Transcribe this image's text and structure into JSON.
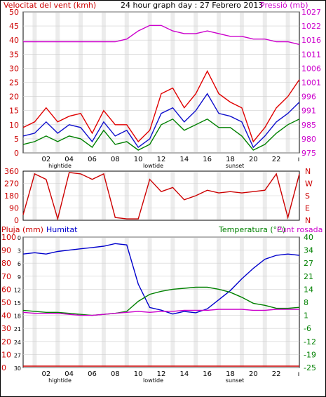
{
  "header": {
    "wind_label": "Velocitat del vent (kmh)",
    "title": "24 hour graph day : 27 Febrero 2013",
    "pressure_label": "Pressió (mb)"
  },
  "bottom_header": {
    "rain_label": "Pluja (mm)",
    "humidity_label": "Humitat",
    "temp_label": "Temperatura (°C)",
    "dew_label": "Punt rosada"
  },
  "hour_labels": [
    "02",
    "04",
    "06",
    "08",
    "10",
    "12",
    "14",
    "16",
    "18",
    "20",
    "22"
  ],
  "event_labels": {
    "hightide": "hightide",
    "lowtide": "lowtide",
    "sunset": "sunset"
  },
  "colors": {
    "wind_speed": "#1010cc",
    "wind_gust": "#e00000",
    "wind_avg": "#008000",
    "pressure": "#cc00cc",
    "direction": "#cc0000",
    "humidity": "#0000cc",
    "temperature": "#008000",
    "dew_point": "#cc00cc",
    "rain": "#cc0000",
    "left_axis": "#cc0000",
    "frame": "#000000",
    "grid": "#d0d0d0",
    "hour_band": "#ececec"
  },
  "chart_data": [
    {
      "type": "line",
      "title": "24 hour graph day : 27 Febrero 2013",
      "ylabel": "Velocitat del vent (kmh)",
      "y2label": "Pressió (mb)",
      "ylim": [
        0,
        50
      ],
      "y2lim": [
        975,
        1027
      ],
      "yticks": [
        0,
        5,
        10,
        15,
        20,
        25,
        30,
        35,
        40,
        45,
        50
      ],
      "y2ticks": [
        975,
        980,
        985,
        991,
        996,
        1001,
        1006,
        1011,
        1016,
        1022,
        1027
      ],
      "x_hours": [
        0,
        1,
        2,
        3,
        4,
        5,
        6,
        7,
        8,
        9,
        10,
        11,
        12,
        13,
        14,
        15,
        16,
        17,
        18,
        19,
        20,
        21,
        22,
        23,
        24
      ],
      "series": [
        {
          "name": "wind_speed",
          "values": [
            6,
            7,
            11,
            7,
            10,
            9,
            4,
            11,
            6,
            8,
            2,
            5,
            14,
            16,
            11,
            15,
            21,
            14,
            13,
            11,
            2,
            6,
            11,
            14,
            18
          ]
        },
        {
          "name": "wind_gust",
          "values": [
            9,
            11,
            16,
            11,
            13,
            14,
            7,
            15,
            10,
            10,
            4,
            8,
            21,
            23,
            16,
            21,
            29,
            21,
            18,
            16,
            4,
            9,
            16,
            20,
            26
          ]
        },
        {
          "name": "wind_avg",
          "values": [
            3,
            4,
            6,
            4,
            6,
            5,
            2,
            8,
            3,
            4,
            1,
            3,
            10,
            12,
            8,
            10,
            12,
            9,
            9,
            6,
            1,
            3,
            7,
            10,
            12
          ]
        },
        {
          "name": "pressure",
          "values": [
            1016,
            1016,
            1016,
            1016,
            1016,
            1016,
            1016,
            1016,
            1016,
            1017,
            1020,
            1022,
            1022,
            1020,
            1019,
            1019,
            1020,
            1019,
            1018,
            1018,
            1017,
            1017,
            1016,
            1016,
            1015
          ]
        }
      ]
    },
    {
      "type": "line",
      "ylabel_ticks": [
        "360",
        "270",
        "180",
        "90",
        "0"
      ],
      "y2label_ticks": [
        "N",
        "W",
        "S",
        "E",
        "N"
      ],
      "ylim": [
        0,
        360
      ],
      "x_hours": [
        0,
        1,
        2,
        3,
        4,
        5,
        6,
        7,
        8,
        9,
        10,
        11,
        12,
        13,
        14,
        15,
        16,
        17,
        18,
        19,
        20,
        21,
        22,
        23,
        24
      ],
      "series": [
        {
          "name": "direction",
          "values": [
            40,
            340,
            300,
            10,
            350,
            340,
            300,
            340,
            20,
            10,
            10,
            300,
            210,
            240,
            150,
            180,
            220,
            200,
            210,
            200,
            210,
            220,
            340,
            20,
            340
          ]
        }
      ]
    },
    {
      "type": "line",
      "ylim": [
        0,
        100
      ],
      "y2lim": [
        -25,
        40
      ],
      "yticks": [
        0,
        10,
        20,
        30,
        40,
        50,
        60,
        70,
        80,
        90,
        100
      ],
      "y2ticks": [
        40,
        34,
        27,
        21,
        14,
        8,
        1,
        -6,
        -12,
        -19,
        -25
      ],
      "rain_ticks": [
        0,
        3,
        6,
        9,
        12,
        15,
        18,
        21,
        24,
        27,
        30
      ],
      "x_hours": [
        0,
        1,
        2,
        3,
        4,
        5,
        6,
        7,
        8,
        9,
        10,
        11,
        12,
        13,
        14,
        15,
        16,
        17,
        18,
        19,
        20,
        21,
        22,
        23,
        24
      ],
      "series": [
        {
          "name": "humidity",
          "values": [
            87,
            88,
            87,
            89,
            90,
            91,
            92,
            93,
            95,
            94,
            64,
            46,
            44,
            41,
            43,
            42,
            45,
            52,
            59,
            68,
            76,
            83,
            86,
            87,
            86
          ]
        },
        {
          "name": "temperature",
          "values": [
            3.5,
            3,
            2.5,
            2.5,
            2,
            1.5,
            1,
            1.5,
            2,
            3,
            8,
            11.5,
            13,
            14,
            14.5,
            15,
            15,
            14,
            12.5,
            10,
            7,
            6,
            4.5,
            4.5,
            5
          ]
        },
        {
          "name": "dew_point",
          "values": [
            2.5,
            2,
            2,
            2,
            1.5,
            1,
            1,
            1.5,
            2,
            2.5,
            3,
            2.5,
            3,
            3,
            3.5,
            3.5,
            3.5,
            4,
            4,
            4,
            3.5,
            3.5,
            4,
            4,
            4
          ]
        },
        {
          "name": "rain",
          "values": [
            0,
            0,
            0,
            0,
            0,
            0,
            0,
            0,
            0,
            0,
            0,
            0,
            0,
            0,
            0,
            0,
            0,
            0,
            0,
            0,
            0,
            0,
            0,
            0,
            0
          ]
        }
      ]
    }
  ]
}
